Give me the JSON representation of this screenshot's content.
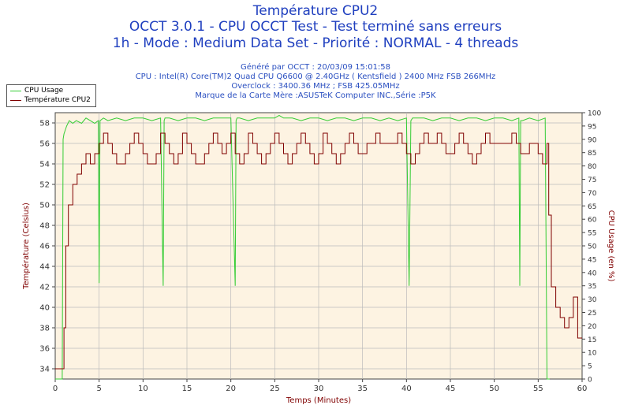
{
  "titles": {
    "line1": "Température CPU2",
    "line2": "OCCT 3.0.1 - CPU OCCT Test - Test terminé sans erreurs",
    "line3": "1h - Mode : Medium Data Set - Priorité : NORMAL - 4 threads"
  },
  "subtitles": {
    "generated": "Généré par OCCT : 20/03/09 15:01:58",
    "cpu": "CPU : Intel(R) Core(TM)2 Quad CPU Q6600 @ 2.40GHz ( Kentsfield ) 2400 MHz FSB 266MHz",
    "overclock": "Overclock : 3400.36 MHz ; FSB 425.05MHz",
    "motherboard": "Marque de la Carte Mère :ASUSTeK Computer INC.,Série :P5K"
  },
  "chart_data": {
    "type": "line",
    "xlabel": "Temps (Minutes)",
    "ylabel_left": "Température (Celsius)",
    "ylabel_right": "CPU Usage (en %)",
    "xlim": [
      0,
      60
    ],
    "ylim_left": [
      33,
      59
    ],
    "ylim_right": [
      0,
      100
    ],
    "x_ticks": [
      0,
      5,
      10,
      15,
      20,
      25,
      30,
      35,
      40,
      45,
      50,
      55,
      60
    ],
    "y_left_ticks": [
      34,
      36,
      38,
      40,
      42,
      44,
      46,
      48,
      50,
      52,
      54,
      56,
      58
    ],
    "y_right_ticks": [
      0,
      5,
      10,
      15,
      20,
      25,
      30,
      35,
      40,
      45,
      50,
      55,
      60,
      65,
      70,
      75,
      80,
      85,
      90,
      95,
      100
    ],
    "grid": true,
    "legend_position": "top-left",
    "colors": {
      "cpu_usage": "#33cc33",
      "temperature": "#800000",
      "plot_background": "#fdf3e2",
      "axis_left_text": "#800000",
      "axis_right_text": "#800000",
      "grid": "#bbbbbb"
    },
    "series": [
      {
        "name": "CPU Usage",
        "axis": "right",
        "x": [
          0,
          0.8,
          0.9,
          1.0,
          1.3,
          1.6,
          2.0,
          2.4,
          3,
          3.5,
          4,
          4.5,
          4.9,
          5.0,
          5.1,
          5.5,
          6,
          7,
          8,
          9,
          10,
          11,
          12,
          12.2,
          12.3,
          12.4,
          12.5,
          13,
          14,
          15,
          16,
          17,
          18,
          19,
          20,
          20.5,
          20.6,
          20.7,
          21,
          22,
          23,
          24,
          25,
          25.5,
          26,
          27,
          28,
          29,
          30,
          31,
          32,
          33,
          34,
          35,
          36,
          37,
          38,
          39,
          40,
          40.3,
          40.5,
          40.7,
          41,
          42,
          43,
          44,
          45,
          46,
          47,
          48,
          49,
          50,
          51,
          52,
          52.8,
          52.9,
          53.0,
          53.2,
          54,
          55,
          55.8,
          56.0,
          56.1,
          56.3
        ],
        "y": [
          0,
          0,
          90,
          92,
          95,
          97,
          96,
          97,
          96,
          98,
          97,
          96,
          97,
          36,
          97,
          98,
          97,
          98,
          97,
          98,
          98,
          97,
          98,
          55,
          35,
          97,
          98,
          98,
          97,
          98,
          98,
          97,
          98,
          98,
          98,
          35,
          97,
          98,
          98,
          97,
          98,
          98,
          98,
          99,
          98,
          98,
          97,
          98,
          98,
          97,
          98,
          98,
          97,
          98,
          98,
          97,
          98,
          97,
          98,
          35,
          97,
          98,
          98,
          98,
          97,
          98,
          98,
          97,
          98,
          98,
          97,
          98,
          98,
          97,
          98,
          35,
          97,
          97,
          98,
          97,
          98,
          0,
          0,
          0
        ]
      },
      {
        "name": "Température CPU2",
        "axis": "left",
        "x": [
          0,
          0.8,
          1.0,
          1.2,
          1.5,
          2.0,
          2.5,
          3.0,
          3.5,
          4.0,
          4.5,
          5.0,
          5.5,
          6.0,
          6.5,
          7.0,
          7.5,
          8.0,
          8.5,
          9.0,
          9.5,
          10.0,
          10.5,
          11.0,
          11.5,
          12.0,
          12.5,
          13.0,
          13.5,
          14.0,
          14.5,
          15.0,
          15.5,
          16.0,
          16.5,
          17.0,
          17.5,
          18.0,
          18.5,
          19.0,
          19.5,
          20.0,
          20.5,
          21.0,
          21.5,
          22.0,
          22.5,
          23.0,
          23.5,
          24.0,
          24.5,
          25.0,
          25.5,
          26.0,
          26.5,
          27.0,
          27.5,
          28.0,
          28.5,
          29.0,
          29.5,
          30.0,
          30.5,
          31.0,
          31.5,
          32.0,
          32.5,
          33.0,
          33.5,
          34.0,
          34.5,
          35.0,
          35.5,
          36.0,
          36.5,
          37.0,
          37.5,
          38.0,
          38.5,
          39.0,
          39.5,
          40.0,
          40.5,
          41.0,
          41.5,
          42.0,
          42.5,
          43.0,
          43.5,
          44.0,
          44.5,
          45.0,
          45.5,
          46.0,
          46.5,
          47.0,
          47.5,
          48.0,
          48.5,
          49.0,
          49.5,
          50.0,
          50.5,
          51.0,
          51.5,
          52.0,
          52.5,
          53.0,
          53.5,
          54.0,
          54.5,
          55.0,
          55.5,
          56.0,
          56.2,
          56.5,
          57.0,
          57.5,
          58.0,
          58.5,
          59.0,
          59.5,
          60.0
        ],
        "y": [
          34,
          34,
          38,
          46,
          50,
          52,
          53,
          54,
          55,
          54,
          55,
          56,
          57,
          56,
          55,
          54,
          54,
          55,
          56,
          57,
          56,
          55,
          54,
          54,
          55,
          57,
          56,
          55,
          54,
          55,
          57,
          56,
          55,
          54,
          54,
          55,
          56,
          57,
          56,
          55,
          56,
          57,
          55,
          54,
          55,
          57,
          56,
          55,
          54,
          55,
          56,
          57,
          56,
          55,
          54,
          55,
          56,
          57,
          56,
          55,
          54,
          55,
          57,
          56,
          55,
          54,
          55,
          56,
          57,
          56,
          55,
          55,
          56,
          56,
          57,
          56,
          56,
          56,
          56,
          57,
          56,
          55,
          54,
          55,
          56,
          57,
          56,
          56,
          57,
          56,
          55,
          55,
          56,
          57,
          56,
          55,
          54,
          55,
          56,
          57,
          56,
          56,
          56,
          56,
          56,
          57,
          56,
          55,
          55,
          56,
          56,
          55,
          54,
          56,
          49,
          42,
          40,
          39,
          38,
          39,
          41,
          37,
          37
        ]
      }
    ]
  }
}
